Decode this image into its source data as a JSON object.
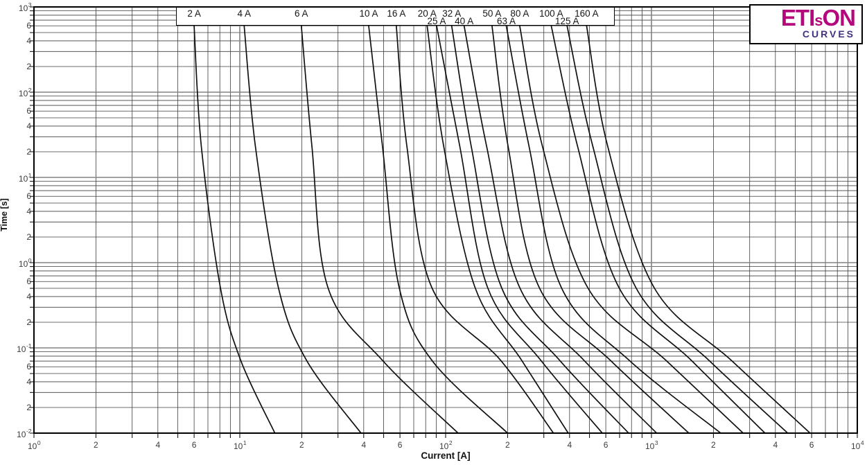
{
  "logo": {
    "brand_start": "ETI",
    "brand_s": "s",
    "brand_end": "ON",
    "subtitle": "CURVES",
    "brand_color": "#b5077d",
    "subtitle_color": "#43317f"
  },
  "colors": {
    "background": "#ffffff",
    "curve": "#101010",
    "grid_minor": "#3c3c3c",
    "grid_major": "#828282",
    "border": "#000000"
  },
  "chart_data": {
    "type": "line",
    "title": "",
    "xlabel": "Current [A]",
    "ylabel": "Time [s]",
    "x_scale": "log",
    "y_scale": "log",
    "xlim": [
      1,
      10000
    ],
    "ylim": [
      0.01,
      1000
    ],
    "grid": true,
    "legend_position": "top-inside-box",
    "x_ticks": [
      {
        "v": 1,
        "label": "10",
        "sup": "0"
      },
      {
        "v": 2,
        "label": "2"
      },
      {
        "v": 4,
        "label": "4"
      },
      {
        "v": 6,
        "label": "6"
      },
      {
        "v": 10,
        "label": "10",
        "sup": "1"
      },
      {
        "v": 20,
        "label": "2"
      },
      {
        "v": 40,
        "label": "4"
      },
      {
        "v": 60,
        "label": "6"
      },
      {
        "v": 100,
        "label": "10",
        "sup": "2"
      },
      {
        "v": 200,
        "label": "2"
      },
      {
        "v": 400,
        "label": "4"
      },
      {
        "v": 600,
        "label": "6"
      },
      {
        "v": 1000,
        "label": "10",
        "sup": "3"
      },
      {
        "v": 2000,
        "label": "2"
      },
      {
        "v": 4000,
        "label": "4"
      },
      {
        "v": 6000,
        "label": "6"
      },
      {
        "v": 10000,
        "label": "10",
        "sup": "4"
      }
    ],
    "y_ticks": [
      {
        "v": 1000,
        "label": "10",
        "sup": "3"
      },
      {
        "v": 600,
        "label": "6"
      },
      {
        "v": 400,
        "label": "4"
      },
      {
        "v": 200,
        "label": "2"
      },
      {
        "v": 100,
        "label": "10",
        "sup": "2"
      },
      {
        "v": 60,
        "label": "6"
      },
      {
        "v": 40,
        "label": "4"
      },
      {
        "v": 20,
        "label": "2"
      },
      {
        "v": 10,
        "label": "10",
        "sup": "1"
      },
      {
        "v": 6,
        "label": "6"
      },
      {
        "v": 4,
        "label": "4"
      },
      {
        "v": 2,
        "label": "2"
      },
      {
        "v": 1,
        "label": "10",
        "sup": "0"
      },
      {
        "v": 0.6,
        "label": "6"
      },
      {
        "v": 0.4,
        "label": "4"
      },
      {
        "v": 0.2,
        "label": "2"
      },
      {
        "v": 0.1,
        "label": "10",
        "sup": "-1"
      },
      {
        "v": 0.06,
        "label": "6"
      },
      {
        "v": 0.04,
        "label": "4"
      },
      {
        "v": 0.02,
        "label": "2"
      },
      {
        "v": 0.01,
        "label": "10",
        "sup": "-2"
      }
    ],
    "series": [
      {
        "name": "2 A",
        "label_row": 1,
        "points": [
          [
            6.0,
            600
          ],
          [
            6.5,
            23.5
          ],
          [
            8.05,
            0.51
          ],
          [
            10.1,
            0.0715
          ],
          [
            14.8,
            0.01
          ]
        ]
      },
      {
        "name": "4 A",
        "label_row": 1,
        "points": [
          [
            10.5,
            600
          ],
          [
            11.9,
            23.5
          ],
          [
            15.4,
            0.51
          ],
          [
            21.1,
            0.0715
          ],
          [
            38.8,
            0.01
          ]
        ]
      },
      {
        "name": "6 A",
        "label_row": 1,
        "points": [
          [
            19.9,
            600
          ],
          [
            22.4,
            23.5
          ],
          [
            26.8,
            0.51
          ],
          [
            49.3,
            0.0715
          ],
          [
            115,
            0.01
          ]
        ]
      },
      {
        "name": "10 A",
        "label_row": 1,
        "points": [
          [
            42.3,
            600
          ],
          [
            49.3,
            23.5
          ],
          [
            59.5,
            0.51
          ],
          [
            85.7,
            0.0715
          ],
          [
            200,
            0.01
          ]
        ]
      },
      {
        "name": "16 A",
        "label_row": 1,
        "points": [
          [
            57.6,
            600
          ],
          [
            64.8,
            23.5
          ],
          [
            85.7,
            0.51
          ],
          [
            185,
            0.0715
          ],
          [
            334,
            0.01
          ]
        ]
      },
      {
        "name": "20 A",
        "label_row": 1,
        "points": [
          [
            81.3,
            600
          ],
          [
            97.8,
            23.5
          ],
          [
            139,
            0.51
          ],
          [
            234,
            0.0715
          ],
          [
            394,
            0.01
          ]
        ]
      },
      {
        "name": "25 A",
        "label_row": 2,
        "points": [
          [
            90.4,
            600
          ],
          [
            117,
            23.5
          ],
          [
            160,
            0.51
          ],
          [
            290,
            0.0715
          ],
          [
            577,
            0.01
          ]
        ]
      },
      {
        "name": "32 A",
        "label_row": 1,
        "points": [
          [
            107,
            600
          ],
          [
            133,
            23.5
          ],
          [
            187,
            0.51
          ],
          [
            358,
            0.0715
          ],
          [
            775,
            0.01
          ]
        ]
      },
      {
        "name": "40 A",
        "label_row": 2,
        "points": [
          [
            123,
            600
          ],
          [
            158,
            23.5
          ],
          [
            229,
            0.51
          ],
          [
            470,
            0.0715
          ],
          [
            1060,
            0.01
          ]
        ]
      },
      {
        "name": "50 A",
        "label_row": 1,
        "points": [
          [
            168,
            600
          ],
          [
            201,
            23.5
          ],
          [
            285,
            0.51
          ],
          [
            631,
            0.0715
          ],
          [
            1520,
            0.01
          ]
        ]
      },
      {
        "name": "63 A",
        "label_row": 2,
        "points": [
          [
            197,
            600
          ],
          [
            254,
            23.5
          ],
          [
            365,
            0.51
          ],
          [
            779,
            0.0715
          ],
          [
            2170,
            0.01
          ]
        ]
      },
      {
        "name": "80 A",
        "label_row": 1,
        "points": [
          [
            229,
            600
          ],
          [
            295,
            23.5
          ],
          [
            490,
            0.51
          ],
          [
            1175,
            0.0715
          ],
          [
            2790,
            0.01
          ]
        ]
      },
      {
        "name": "100 A",
        "label_row": 1,
        "points": [
          [
            326,
            600
          ],
          [
            437,
            23.5
          ],
          [
            695,
            0.51
          ],
          [
            1560,
            0.0715
          ],
          [
            3560,
            0.01
          ]
        ]
      },
      {
        "name": "125 A",
        "label_row": 2,
        "points": [
          [
            389,
            600
          ],
          [
            518,
            23.5
          ],
          [
            840,
            0.51
          ],
          [
            1900,
            0.0715
          ],
          [
            4590,
            0.01
          ]
        ]
      },
      {
        "name": "160 A",
        "label_row": 1,
        "points": [
          [
            484,
            600
          ],
          [
            612,
            23.5
          ],
          [
            1030,
            0.51
          ],
          [
            2440,
            0.0715
          ],
          [
            5900,
            0.01
          ]
        ]
      }
    ]
  }
}
